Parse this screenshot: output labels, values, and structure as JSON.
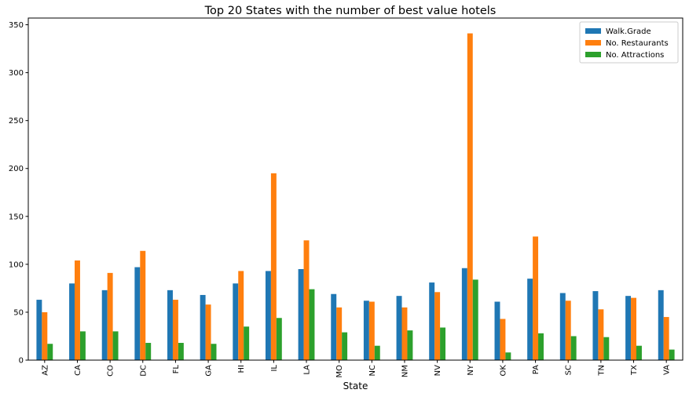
{
  "chart_data": {
    "type": "bar",
    "title": "Top 20 States with the number of best value hotels",
    "xlabel": "State",
    "ylabel": "",
    "ylim": [
      0,
      357
    ],
    "yticks": [
      0,
      50,
      100,
      150,
      200,
      250,
      300,
      350
    ],
    "grid": false,
    "legend_position": "top-right",
    "categories": [
      "AZ",
      "CA",
      "CO",
      "DC",
      "FL",
      "GA",
      "HI",
      "IL",
      "LA",
      "MO",
      "NC",
      "NM",
      "NV",
      "NY",
      "OK",
      "PA",
      "SC",
      "TN",
      "TX",
      "VA"
    ],
    "series": [
      {
        "name": "Walk.Grade",
        "color": "#1f77b4",
        "values": [
          63,
          80,
          73,
          97,
          73,
          68,
          80,
          93,
          95,
          69,
          62,
          67,
          81,
          96,
          61,
          85,
          70,
          72,
          67,
          73
        ]
      },
      {
        "name": "No. Restaurants",
        "color": "#ff7f0e",
        "values": [
          50,
          104,
          91,
          114,
          63,
          58,
          93,
          195,
          125,
          55,
          61,
          55,
          71,
          341,
          43,
          129,
          62,
          53,
          65,
          45
        ]
      },
      {
        "name": "No. Attractions",
        "color": "#2ca02c",
        "values": [
          17,
          30,
          30,
          18,
          18,
          17,
          35,
          44,
          74,
          29,
          15,
          31,
          34,
          84,
          8,
          28,
          25,
          24,
          15,
          11
        ]
      }
    ]
  }
}
